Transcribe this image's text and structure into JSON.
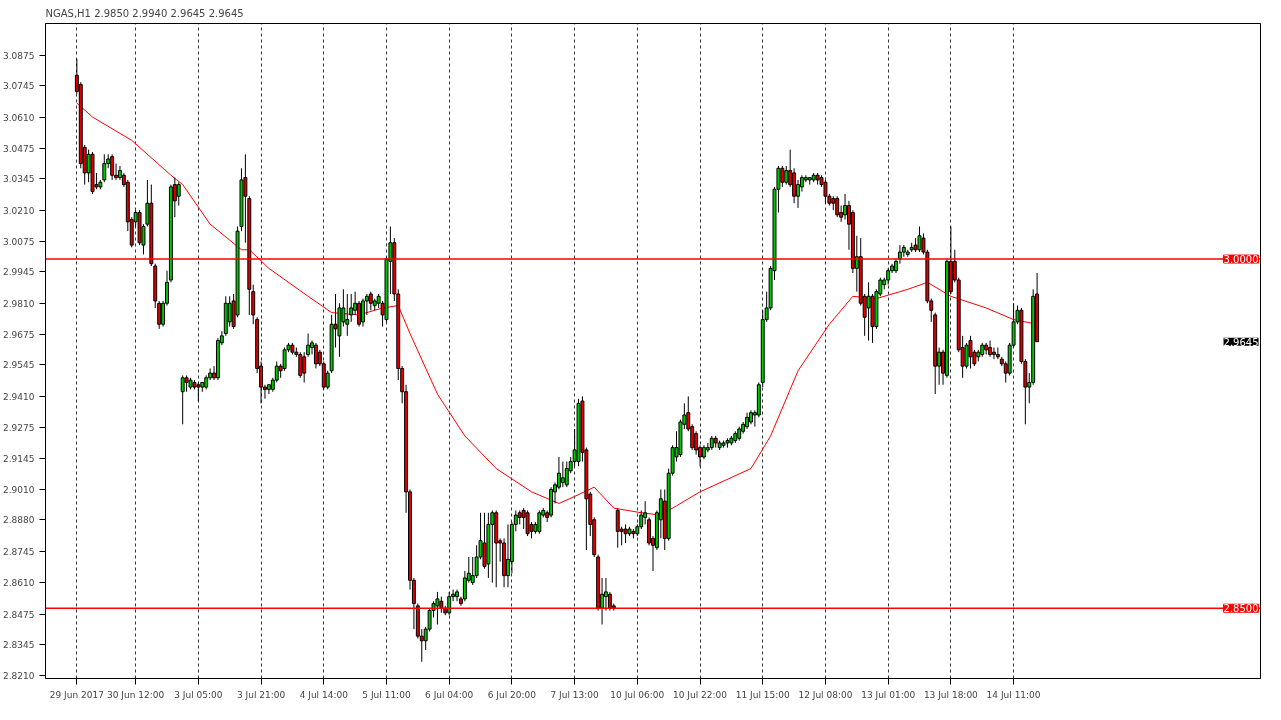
{
  "chart_data": {
    "type": "candlestick",
    "title": "NGAS,H1  2.9850 2.9940 2.9645 2.9645",
    "categories": [
      "29 Jun 2017",
      null,
      null,
      null,
      null,
      null,
      null,
      null,
      null,
      null,
      null,
      null,
      null,
      null,
      null,
      "30 Jun 12:00",
      null,
      null,
      null,
      null,
      null,
      null,
      null,
      null,
      null,
      null,
      null,
      null,
      null,
      null,
      null,
      "3 Jul 05:00",
      null,
      null,
      null,
      null,
      null,
      null,
      null,
      null,
      null,
      null,
      null,
      null,
      null,
      null,
      null,
      "3 Jul 21:00",
      null,
      null,
      null,
      null,
      null,
      null,
      null,
      null,
      null,
      null,
      null,
      null,
      null,
      null,
      null,
      "4 Jul 14:00",
      null,
      null,
      null,
      null,
      null,
      null,
      null,
      null,
      null,
      null,
      null,
      null,
      null,
      null,
      null,
      "5 Jul 11:00",
      null,
      null,
      null,
      null,
      null,
      null,
      null,
      null,
      null,
      null,
      null,
      null,
      null,
      null,
      null,
      "6 Jul 04:00",
      null,
      null,
      null,
      null,
      null,
      null,
      null,
      null,
      null,
      null,
      null,
      null,
      null,
      null,
      null,
      "6 Jul 20:00",
      null,
      null,
      null,
      null,
      null,
      null,
      null,
      null,
      null,
      null,
      null,
      null,
      null,
      null,
      null,
      "7 Jul 13:00",
      null,
      null,
      null,
      null,
      null,
      null,
      null,
      null,
      null,
      null,
      null,
      null,
      null,
      null,
      null,
      "10 Jul 06:00",
      null,
      null,
      null,
      null,
      null,
      null,
      null,
      null,
      null,
      null,
      null,
      null,
      null,
      null,
      null,
      "10 Jul 22:00",
      null,
      null,
      null,
      null,
      null,
      null,
      null,
      null,
      null,
      null,
      null,
      null,
      null,
      null,
      null,
      "11 Jul 15:00",
      null,
      null,
      null,
      null,
      null,
      null,
      null,
      null,
      null,
      null,
      null,
      null,
      null,
      null,
      null,
      "12 Jul 08:00",
      null,
      null,
      null,
      null,
      null,
      null,
      null,
      null,
      null,
      null,
      null,
      null,
      null,
      null,
      null,
      "13 Jul 01:00",
      null,
      null,
      null,
      null,
      null,
      null,
      null,
      null,
      null,
      null,
      null,
      null,
      null,
      null,
      null,
      "13 Jul 18:00",
      null,
      null,
      null,
      null,
      null,
      null,
      null,
      null,
      null,
      null,
      null,
      null,
      null,
      null,
      null,
      "14 Jul 11:00",
      null,
      null,
      null,
      null,
      null,
      null
    ],
    "ohlc": [
      [
        3.079,
        3.086,
        3.071,
        3.072
      ],
      [
        3.075,
        3.076,
        3.039,
        3.041
      ],
      [
        3.048,
        3.049,
        3.032,
        3.037
      ],
      [
        3.037,
        3.047,
        3.033,
        3.045
      ],
      [
        3.045,
        3.046,
        3.028,
        3.029
      ],
      [
        3.032,
        3.037,
        3.03,
        3.031
      ],
      [
        3.031,
        3.034,
        3.03,
        3.033
      ],
      [
        3.034,
        3.045,
        3.033,
        3.041
      ],
      [
        3.041,
        3.045,
        3.039,
        3.043
      ],
      [
        3.044,
        3.045,
        3.034,
        3.036
      ],
      [
        3.036,
        3.041,
        3.034,
        3.035
      ],
      [
        3.035,
        3.04,
        3.034,
        3.038
      ],
      [
        3.036,
        3.037,
        3.031,
        3.032
      ],
      [
        3.033,
        3.034,
        3.012,
        3.016
      ],
      [
        3.017,
        3.018,
        3.005,
        3.006
      ],
      [
        3.016,
        3.021,
        3.014,
        3.02
      ],
      [
        3.02,
        3.021,
        3.006,
        3.007
      ],
      [
        3.006,
        3.015,
        3.002,
        3.014
      ],
      [
        3.015,
        3.034,
        3.014,
        3.024
      ],
      [
        3.024,
        3.032,
        2.997,
        2.998
      ],
      [
        2.997,
        2.998,
        2.979,
        2.982
      ],
      [
        2.981,
        2.982,
        2.97,
        2.972
      ],
      [
        2.972,
        2.982,
        2.971,
        2.981
      ],
      [
        2.981,
        2.995,
        2.98,
        2.99
      ],
      [
        2.991,
        3.032,
        2.99,
        3.031
      ],
      [
        3.032,
        3.035,
        3.018,
        3.025
      ],
      [
        3.027,
        3.033,
        3.023,
        3.032
      ],
      [
        2.943,
        2.95,
        2.929,
        2.949
      ],
      [
        2.949,
        2.95,
        2.943,
        2.947
      ],
      [
        2.945,
        2.949,
        2.944,
        2.948
      ],
      [
        2.947,
        2.948,
        2.944,
        2.945
      ],
      [
        2.946,
        2.947,
        2.939,
        2.945
      ],
      [
        2.945,
        2.947,
        2.943,
        2.947
      ],
      [
        2.945,
        2.95,
        2.944,
        2.949
      ],
      [
        2.949,
        2.953,
        2.948,
        2.951
      ],
      [
        2.951,
        2.954,
        2.948,
        2.949
      ],
      [
        2.949,
        2.966,
        2.948,
        2.965
      ],
      [
        2.964,
        2.969,
        2.963,
        2.967
      ],
      [
        2.968,
        2.984,
        2.967,
        2.981
      ],
      [
        2.973,
        2.984,
        2.971,
        2.981
      ],
      [
        2.982,
        2.985,
        2.97,
        2.971
      ],
      [
        2.976,
        3.014,
        2.975,
        3.012
      ],
      [
        3.014,
        3.039,
        3.012,
        3.034
      ],
      [
        3.035,
        3.045,
        3.007,
        3.027
      ],
      [
        3.026,
        3.027,
        2.976,
        2.987
      ],
      [
        2.986,
        2.989,
        2.972,
        2.976
      ],
      [
        2.974,
        2.975,
        2.951,
        2.953
      ],
      [
        2.954,
        2.956,
        2.938,
        2.945
      ],
      [
        2.945,
        2.946,
        2.94,
        2.944
      ],
      [
        2.944,
        2.946,
        2.942,
        2.946
      ],
      [
        2.944,
        2.949,
        2.943,
        2.948
      ],
      [
        2.948,
        2.956,
        2.947,
        2.954
      ],
      [
        2.954,
        2.955,
        2.949,
        2.952
      ],
      [
        2.953,
        2.962,
        2.952,
        2.961
      ],
      [
        2.961,
        2.964,
        2.96,
        2.963
      ],
      [
        2.963,
        2.964,
        2.959,
        2.96
      ],
      [
        2.96,
        2.962,
        2.958,
        2.959
      ],
      [
        2.959,
        2.96,
        2.949,
        2.95
      ],
      [
        2.958,
        2.96,
        2.947,
        2.951
      ],
      [
        2.959,
        2.968,
        2.958,
        2.963
      ],
      [
        2.962,
        2.965,
        2.959,
        2.964
      ],
      [
        2.963,
        2.964,
        2.953,
        2.955
      ],
      [
        2.96,
        2.961,
        2.954,
        2.955
      ],
      [
        2.955,
        2.956,
        2.944,
        2.945
      ],
      [
        2.945,
        2.952,
        2.944,
        2.951
      ],
      [
        2.952,
        2.976,
        2.951,
        2.972
      ],
      [
        2.972,
        2.985,
        2.962,
        2.97
      ],
      [
        2.967,
        2.981,
        2.958,
        2.979
      ],
      [
        2.973,
        2.987,
        2.971,
        2.979
      ],
      [
        2.972,
        2.985,
        2.967,
        2.974
      ],
      [
        2.976,
        2.985,
        2.973,
        2.979
      ],
      [
        2.978,
        2.986,
        2.976,
        2.981
      ],
      [
        2.981,
        2.982,
        2.971,
        2.972
      ],
      [
        2.973,
        2.983,
        2.971,
        2.982
      ],
      [
        2.982,
        2.985,
        2.976,
        2.984
      ],
      [
        2.985,
        2.986,
        2.978,
        2.981
      ],
      [
        2.98,
        2.983,
        2.978,
        2.982
      ],
      [
        2.981,
        2.985,
        2.979,
        2.984
      ],
      [
        2.981,
        2.982,
        2.971,
        2.976
      ],
      [
        2.974,
        3.001,
        2.973,
        3.0
      ],
      [
        2.999,
        3.014,
        2.985,
        3.007
      ],
      [
        3.007,
        3.009,
        2.982,
        2.985
      ],
      [
        2.985,
        2.987,
        2.948,
        2.953
      ],
      [
        2.953,
        2.954,
        2.938,
        2.943
      ],
      [
        2.943,
        2.946,
        2.891,
        2.9
      ],
      [
        2.9,
        2.901,
        2.858,
        2.862
      ],
      [
        2.862,
        2.863,
        2.841,
        2.852
      ],
      [
        2.851,
        2.852,
        2.837,
        2.838
      ],
      [
        2.838,
        2.841,
        2.827,
        2.836
      ],
      [
        2.836,
        2.842,
        2.832,
        2.841
      ],
      [
        2.841,
        2.85,
        2.84,
        2.849
      ],
      [
        2.849,
        2.853,
        2.846,
        2.852
      ],
      [
        2.851,
        2.857,
        2.843,
        2.854
      ],
      [
        2.853,
        2.855,
        2.848,
        2.85
      ],
      [
        2.85,
        2.851,
        2.847,
        2.848
      ],
      [
        2.848,
        2.857,
        2.847,
        2.855
      ],
      [
        2.855,
        2.858,
        2.853,
        2.856
      ],
      [
        2.855,
        2.858,
        2.853,
        2.857
      ],
      [
        2.854,
        2.855,
        2.851,
        2.852
      ],
      [
        2.854,
        2.866,
        2.853,
        2.863
      ],
      [
        2.862,
        2.872,
        2.861,
        2.865
      ],
      [
        2.861,
        2.872,
        2.86,
        2.864
      ],
      [
        2.864,
        2.877,
        2.863,
        2.872
      ],
      [
        2.872,
        2.891,
        2.871,
        2.879
      ],
      [
        2.878,
        2.891,
        2.867,
        2.868
      ],
      [
        2.869,
        2.891,
        2.863,
        2.886
      ],
      [
        2.886,
        2.892,
        2.861,
        2.891
      ],
      [
        2.891,
        2.892,
        2.859,
        2.878
      ],
      [
        2.879,
        2.88,
        2.87,
        2.878
      ],
      [
        2.878,
        2.88,
        2.859,
        2.864
      ],
      [
        2.864,
        2.886,
        2.859,
        2.871
      ],
      [
        2.87,
        2.887,
        2.865,
        2.886
      ],
      [
        2.886,
        2.892,
        2.883,
        2.89
      ],
      [
        2.891,
        2.892,
        2.886,
        2.889
      ],
      [
        2.892,
        2.893,
        2.884,
        2.889
      ],
      [
        2.891,
        2.892,
        2.881,
        2.882
      ],
      [
        2.886,
        2.887,
        2.88,
        2.883
      ],
      [
        2.883,
        2.887,
        2.882,
        2.886
      ],
      [
        2.883,
        2.892,
        2.882,
        2.891
      ],
      [
        2.89,
        2.893,
        2.889,
        2.892
      ],
      [
        2.891,
        2.892,
        2.887,
        2.889
      ],
      [
        2.89,
        2.902,
        2.889,
        2.901
      ],
      [
        2.9,
        2.904,
        2.895,
        2.903
      ],
      [
        2.902,
        2.915,
        2.901,
        2.908
      ],
      [
        2.904,
        2.913,
        2.902,
        2.906
      ],
      [
        2.903,
        2.913,
        2.902,
        2.91
      ],
      [
        2.909,
        2.915,
        2.908,
        2.913
      ],
      [
        2.913,
        2.927,
        2.911,
        2.918
      ],
      [
        2.913,
        2.94,
        2.911,
        2.938
      ],
      [
        2.939,
        2.941,
        2.913,
        2.917
      ],
      [
        2.918,
        2.919,
        2.875,
        2.897
      ],
      [
        2.899,
        2.9,
        2.881,
        2.886
      ],
      [
        2.888,
        2.889,
        2.872,
        2.873
      ],
      [
        2.872,
        2.873,
        2.849,
        2.85
      ],
      [
        2.85,
        2.863,
        2.843,
        2.856
      ],
      [
        2.855,
        2.863,
        2.849,
        2.857
      ],
      [
        2.856,
        2.857,
        2.849,
        2.85
      ],
      [
        2.851,
        2.852,
        2.849,
        2.85
      ],
      [
        2.892,
        2.893,
        2.876,
        2.883
      ],
      [
        2.884,
        2.885,
        2.877,
        2.883
      ],
      [
        2.884,
        2.886,
        2.878,
        2.882
      ],
      [
        2.882,
        2.885,
        2.881,
        2.884
      ],
      [
        2.883,
        2.884,
        2.88,
        2.882
      ],
      [
        2.882,
        2.886,
        2.881,
        2.885
      ],
      [
        2.885,
        2.892,
        2.884,
        2.89
      ],
      [
        2.889,
        2.896,
        2.886,
        2.891
      ],
      [
        2.888,
        2.889,
        2.877,
        2.878
      ],
      [
        2.88,
        2.881,
        2.866,
        2.877
      ],
      [
        2.876,
        2.892,
        2.875,
        2.891
      ],
      [
        2.888,
        2.901,
        2.88,
        2.897
      ],
      [
        2.896,
        2.901,
        2.875,
        2.88
      ],
      [
        2.88,
        2.91,
        2.879,
        2.908
      ],
      [
        2.908,
        2.92,
        2.907,
        2.919
      ],
      [
        2.915,
        2.926,
        2.913,
        2.919
      ],
      [
        2.916,
        2.931,
        2.915,
        2.93
      ],
      [
        2.929,
        2.938,
        2.927,
        2.933
      ],
      [
        2.934,
        2.941,
        2.926,
        2.927
      ],
      [
        2.928,
        2.929,
        2.918,
        2.919
      ],
      [
        2.925,
        2.926,
        2.916,
        2.918
      ],
      [
        2.919,
        2.92,
        2.911,
        2.915
      ],
      [
        2.915,
        2.92,
        2.914,
        2.919
      ],
      [
        2.918,
        2.921,
        2.917,
        2.919
      ],
      [
        2.919,
        2.924,
        2.918,
        2.923
      ],
      [
        2.923,
        2.924,
        2.919,
        2.921
      ],
      [
        2.919,
        2.922,
        2.918,
        2.921
      ],
      [
        2.92,
        2.922,
        2.919,
        2.921
      ],
      [
        2.921,
        2.923,
        2.919,
        2.922
      ],
      [
        2.921,
        2.924,
        2.92,
        2.923
      ],
      [
        2.922,
        2.926,
        2.921,
        2.925
      ],
      [
        2.923,
        2.928,
        2.922,
        2.927
      ],
      [
        2.926,
        2.93,
        2.925,
        2.929
      ],
      [
        2.928,
        2.934,
        2.927,
        2.932
      ],
      [
        2.93,
        2.935,
        2.929,
        2.934
      ],
      [
        2.933,
        2.935,
        2.928,
        2.934
      ],
      [
        2.933,
        2.947,
        2.932,
        2.946
      ],
      [
        2.947,
        2.978,
        2.945,
        2.974
      ],
      [
        2.974,
        2.986,
        2.973,
        2.979
      ],
      [
        2.979,
        2.997,
        2.978,
        2.996
      ],
      [
        2.995,
        3.031,
        2.991,
        3.03
      ],
      [
        3.03,
        3.04,
        3.02,
        3.039
      ],
      [
        3.039,
        3.04,
        3.031,
        3.033
      ],
      [
        3.033,
        3.04,
        3.032,
        3.038
      ],
      [
        3.038,
        3.047,
        3.031,
        3.032
      ],
      [
        3.037,
        3.039,
        3.024,
        3.027
      ],
      [
        3.027,
        3.034,
        3.022,
        3.032
      ],
      [
        3.031,
        3.036,
        3.029,
        3.035
      ],
      [
        3.034,
        3.036,
        3.033,
        3.035
      ],
      [
        3.034,
        3.035,
        3.032,
        3.035
      ],
      [
        3.034,
        3.037,
        3.033,
        3.036
      ],
      [
        3.036,
        3.037,
        3.032,
        3.034
      ],
      [
        3.035,
        3.036,
        3.031,
        3.032
      ],
      [
        3.033,
        3.034,
        3.024,
        3.027
      ],
      [
        3.027,
        3.028,
        3.023,
        3.024
      ],
      [
        3.026,
        3.027,
        3.021,
        3.024
      ],
      [
        3.026,
        3.027,
        3.018,
        3.019
      ],
      [
        3.02,
        3.023,
        3.016,
        3.018
      ],
      [
        3.019,
        3.028,
        3.017,
        3.023
      ],
      [
        3.023,
        3.025,
        3.004,
        3.015
      ],
      [
        3.02,
        3.021,
        2.994,
        2.996
      ],
      [
        2.996,
        3.01,
        2.986,
        3.001
      ],
      [
        3.001,
        3.009,
        2.98,
        2.981
      ],
      [
        2.984,
        2.985,
        2.967,
        2.975
      ],
      [
        2.979,
        2.99,
        2.965,
        2.984
      ],
      [
        2.984,
        2.985,
        2.964,
        2.971
      ],
      [
        2.971,
        2.987,
        2.97,
        2.986
      ],
      [
        2.985,
        2.992,
        2.984,
        2.991
      ],
      [
        2.989,
        2.992,
        2.987,
        2.991
      ],
      [
        2.991,
        2.996,
        2.989,
        2.995
      ],
      [
        2.995,
        2.998,
        2.994,
        2.997
      ],
      [
        2.995,
        3.0,
        2.994,
        2.999
      ],
      [
        3.0,
        3.006,
        2.998,
        3.003
      ],
      [
        3.003,
        3.006,
        3.001,
        3.005
      ],
      [
        3.002,
        3.004,
        3.001,
        3.003
      ],
      [
        3.004,
        3.007,
        3.003,
        3.005
      ],
      [
        3.006,
        3.009,
        3.003,
        3.004
      ],
      [
        3.004,
        3.014,
        3.003,
        3.01
      ],
      [
        3.009,
        3.011,
        3.002,
        3.003
      ],
      [
        3.003,
        3.004,
        2.981,
        2.982
      ],
      [
        2.982,
        2.983,
        2.973,
        2.978
      ],
      [
        2.976,
        2.977,
        2.942,
        2.954
      ],
      [
        2.954,
        2.962,
        2.946,
        2.96
      ],
      [
        2.96,
        2.961,
        2.946,
        2.951
      ],
      [
        2.95,
        3.0,
        2.949,
        2.999
      ],
      [
        2.999,
        3.014,
        2.985,
        2.986
      ],
      [
        2.999,
        3.004,
        2.99,
        2.991
      ],
      [
        2.991,
        2.992,
        2.96,
        2.961
      ],
      [
        2.962,
        2.967,
        2.949,
        2.954
      ],
      [
        2.954,
        2.964,
        2.953,
        2.963
      ],
      [
        2.965,
        2.967,
        2.953,
        2.958
      ],
      [
        2.96,
        2.961,
        2.954,
        2.955
      ],
      [
        2.958,
        2.961,
        2.956,
        2.96
      ],
      [
        2.959,
        2.964,
        2.958,
        2.963
      ],
      [
        2.963,
        2.964,
        2.959,
        2.961
      ],
      [
        2.962,
        2.965,
        2.958,
        2.959
      ],
      [
        2.96,
        2.962,
        2.957,
        2.959
      ],
      [
        2.959,
        2.962,
        2.957,
        2.958
      ],
      [
        2.957,
        2.958,
        2.954,
        2.955
      ],
      [
        2.955,
        2.956,
        2.947,
        2.951
      ],
      [
        2.951,
        2.964,
        2.95,
        2.963
      ],
      [
        2.963,
        2.981,
        2.962,
        2.973
      ],
      [
        2.973,
        2.98,
        2.972,
        2.978
      ],
      [
        2.978,
        2.979,
        2.955,
        2.956
      ],
      [
        2.956,
        2.957,
        2.929,
        2.945
      ],
      [
        2.945,
        2.951,
        2.938,
        2.947
      ],
      [
        2.947,
        2.987,
        2.946,
        2.984
      ],
      [
        2.985,
        2.994,
        2.9645,
        2.9645
      ]
    ],
    "series": [
      {
        "type": "line",
        "color": "#ff0000",
        "values": [
          3.067,
          null,
          null,
          null,
          3.061,
          null,
          null,
          null,
          null,
          null,
          null,
          null,
          null,
          null,
          3.051,
          null,
          null,
          null,
          null,
          null,
          null,
          null,
          null,
          null,
          3.036,
          null,
          null,
          3.032,
          null,
          null,
          null,
          null,
          null,
          null,
          3.015,
          null,
          null,
          null,
          null,
          null,
          null,
          null,
          3.004,
          null,
          3.004,
          null,
          null,
          null,
          null,
          2.996,
          null,
          null,
          null,
          null,
          null,
          null,
          null,
          null,
          null,
          2.984,
          null,
          null,
          null,
          null,
          null,
          2.977,
          null,
          null,
          null,
          null,
          null,
          null,
          2.976,
          null,
          null,
          null,
          null,
          null,
          2.979,
          null,
          null,
          null,
          2.98,
          null,
          null,
          2.968,
          null,
          null,
          null,
          null,
          null,
          null,
          2.942,
          null,
          null,
          null,
          null,
          null,
          null,
          2.924,
          null,
          null,
          null,
          null,
          null,
          null,
          null,
          2.91,
          null,
          null,
          null,
          null,
          null,
          null,
          null,
          null,
          2.9,
          null,
          null,
          null,
          null,
          null,
          null,
          2.895,
          null,
          null,
          null,
          2.898,
          null,
          null,
          null,
          null,
          2.902,
          null,
          null,
          null,
          null,
          2.893,
          null,
          null,
          null,
          null,
          null,
          null,
          2.891,
          null,
          null,
          null,
          null,
          2.89,
          null,
          null,
          null,
          2.894,
          null,
          null,
          null,
          null,
          null,
          2.9,
          null,
          null,
          null,
          null,
          null,
          null,
          null,
          null,
          null,
          null,
          null,
          null,
          2.91,
          null,
          null,
          null,
          null,
          2.924,
          null,
          null,
          null,
          null,
          null,
          null,
          2.952,
          null,
          null,
          null,
          null,
          null,
          null,
          null,
          2.972,
          null,
          null,
          null,
          null,
          null,
          2.984,
          null,
          null,
          null,
          null,
          null,
          2.983,
          null,
          null,
          null,
          null,
          null,
          null,
          null,
          2.987,
          null,
          null,
          null,
          null,
          2.99,
          null,
          null,
          null,
          null,
          null,
          2.984,
          null,
          null,
          null,
          null,
          null,
          null,
          null,
          null,
          2.979,
          null,
          null,
          null,
          null,
          null,
          null,
          2.974,
          null,
          null,
          null,
          null,
          null,
          2.972
        ]
      }
    ],
    "ylim": [
      2.8198,
      3.1012
    ],
    "yticks": [
      {
        "value": 2.821,
        "label": "2.8210"
      },
      {
        "value": 2.8345,
        "label": "2.8345"
      },
      {
        "value": 2.8475,
        "label": "2.8475"
      },
      {
        "value": 2.861,
        "label": "2.8610"
      },
      {
        "value": 2.8745,
        "label": "2.8745"
      },
      {
        "value": 2.888,
        "label": "2.8880"
      },
      {
        "value": 2.901,
        "label": "2.9010"
      },
      {
        "value": 2.9145,
        "label": "2.9145"
      },
      {
        "value": 2.9275,
        "label": "2.9275"
      },
      {
        "value": 2.941,
        "label": "2.9410"
      },
      {
        "value": 2.9545,
        "label": "2.9545"
      },
      {
        "value": 2.9675,
        "label": "2.9675"
      },
      {
        "value": 2.981,
        "label": "2.9810"
      },
      {
        "value": 2.9945,
        "label": "2.9945"
      },
      {
        "value": 3.0075,
        "label": "3.0075"
      },
      {
        "value": 3.021,
        "label": "3.0210"
      },
      {
        "value": 3.0345,
        "label": "3.0345"
      },
      {
        "value": 3.0475,
        "label": "3.0475"
      },
      {
        "value": 3.061,
        "label": "3.0610"
      },
      {
        "value": 3.0745,
        "label": "3.0745"
      },
      {
        "value": 3.0875,
        "label": "3.0875"
      }
    ],
    "grid": "x",
    "ref_lines": [
      {
        "axis": "y",
        "value": 3.0,
        "label": "3.0000",
        "color": "#ff0000"
      },
      {
        "axis": "y",
        "value": 2.85,
        "label": "2.8500",
        "color": "#ff0000"
      }
    ],
    "annotations": [
      "2.9645"
    ]
  }
}
